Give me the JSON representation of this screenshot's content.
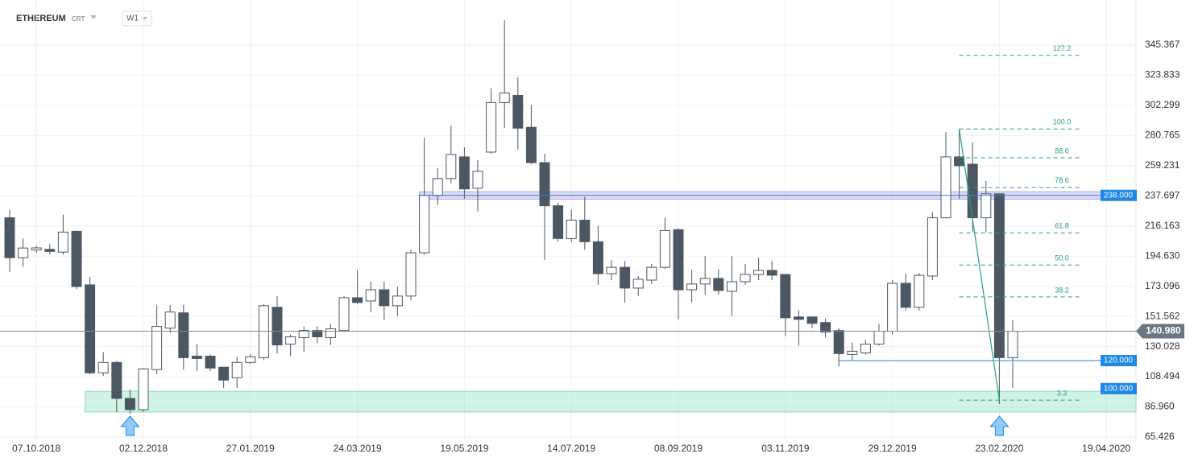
{
  "chart_data": {
    "type": "candlestick",
    "title": "ETHEREUM",
    "subtitle": "CRT",
    "timeframe": "W1",
    "categories": [
      null,
      null,
      "07.10.2018",
      null,
      null,
      null,
      null,
      null,
      null,
      null,
      "02.12.2018",
      null,
      null,
      null,
      null,
      null,
      null,
      null,
      "27.01.2019",
      null,
      null,
      null,
      null,
      null,
      null,
      null,
      "24.03.2019",
      null,
      null,
      null,
      null,
      null,
      null,
      null,
      "19.05.2019",
      null,
      null,
      null,
      null,
      null,
      null,
      null,
      "14.07.2019",
      null,
      null,
      null,
      null,
      null,
      null,
      null,
      "08.09.2019",
      null,
      null,
      null,
      null,
      null,
      null,
      null,
      "03.11.2019",
      null,
      null,
      null,
      null,
      null,
      null,
      null,
      "29.12.2019",
      null,
      null,
      null,
      null,
      null,
      null,
      null,
      "23.02.2020",
      null,
      null,
      null,
      null,
      null,
      null,
      null,
      "19.04.2020"
    ],
    "open": [
      222,
      193.5,
      199,
      199.5,
      197.5,
      212.3,
      174.1,
      111.3,
      118.7,
      93,
      85,
      113.6,
      143.2,
      154.1,
      123.2,
      123.2,
      115.3,
      107.8,
      118.7,
      122.1,
      158.1,
      131.8,
      136.4,
      141.5,
      136.4,
      141.5,
      164.9,
      162.6,
      170.6,
      159.2,
      166.1,
      197,
      238,
      250,
      265.5,
      243.1,
      268.9,
      304.3,
      309.4,
      286.6,
      261.4,
      230.6,
      207.2,
      220.3,
      204.9,
      182.1,
      186.6,
      171.8,
      177.5,
      186.6,
      213.5,
      170.6,
      174.7,
      178.7,
      169.5,
      176.4,
      181.5,
      184.4,
      181.5,
      151.2,
      151.2,
      147.2,
      141.5,
      124.4,
      125.5,
      131.8,
      141,
      175.2,
      158.1,
      180.4,
      222,
      265.5,
      260.3,
      222,
      239.1,
      122.1,
      null,
      null,
      null,
      null,
      null,
      null,
      null
    ],
    "high": [
      227.8,
      207.2,
      202,
      203.2,
      224.3,
      213,
      179.8,
      126.1,
      119.8,
      99.3,
      114.7,
      159.8,
      159.8,
      159.8,
      131.8,
      124.4,
      115.3,
      122.7,
      125,
      160.4,
      166.1,
      138.7,
      144.4,
      144.4,
      146.1,
      166.1,
      184.4,
      176.4,
      176.4,
      172.9,
      199.2,
      279.2,
      257.4,
      287.7,
      272.3,
      263.2,
      314.5,
      363.1,
      322.6,
      302.6,
      267.7,
      232.9,
      227.8,
      236.9,
      216.3,
      191.8,
      191.2,
      180.4,
      189,
      222,
      214.6,
      185,
      194.6,
      185.5,
      194.6,
      189,
      193.5,
      191.2,
      181.5,
      155.8,
      151.2,
      150.1,
      143.2,
      133,
      134.7,
      146.1,
      177.5,
      182.1,
      182.6,
      226,
      283.2,
      284.9,
      275.7,
      248.3,
      239.1,
      148.9,
      null,
      null,
      null,
      null,
      null,
      null,
      null
    ],
    "low": [
      183.2,
      187.2,
      197,
      195.8,
      195.8,
      171,
      110.1,
      109,
      83.3,
      82.1,
      83.3,
      110.1,
      139.8,
      113.6,
      112.4,
      112.4,
      100.4,
      100.4,
      117.6,
      120.4,
      125,
      123.2,
      126.1,
      132.4,
      131.2,
      140.4,
      160.4,
      154.7,
      148.9,
      151.8,
      163.2,
      195.8,
      231.2,
      246.6,
      235.7,
      226.6,
      267.7,
      286,
      270.6,
      260.3,
      191.8,
      204.9,
      204.9,
      199.2,
      174.1,
      177.5,
      161.5,
      166.1,
      174.7,
      185.5,
      149.5,
      161.5,
      167.2,
      167.2,
      151.8,
      174.1,
      177.5,
      177.5,
      137.5,
      130.7,
      143.2,
      136.4,
      115.8,
      120.4,
      124.4,
      130.7,
      138.7,
      155.8,
      155.8,
      177.5,
      221.4,
      235.7,
      211.8,
      211.8,
      89,
      100.4,
      null,
      null,
      null,
      null,
      null,
      null,
      null
    ],
    "close": [
      193.5,
      200.4,
      200.5,
      198,
      211.8,
      172.9,
      111.3,
      118.7,
      93,
      85,
      114.1,
      144.4,
      154.7,
      122.1,
      121.5,
      114.7,
      106.1,
      118.7,
      122.7,
      159.2,
      131.2,
      137,
      141.5,
      137,
      142.7,
      164.9,
      161.5,
      170.6,
      159.2,
      166.1,
      197,
      238,
      250,
      267.2,
      242.6,
      255.2,
      304.3,
      311.1,
      286,
      261.4,
      230.6,
      207.2,
      220.3,
      204.9,
      182.1,
      186.6,
      171.8,
      178.1,
      186.6,
      212.9,
      170.6,
      174.7,
      178.7,
      170.1,
      176.4,
      181.5,
      184.4,
      181,
      150.6,
      149.5,
      146.6,
      140.4,
      125,
      126.7,
      131.8,
      141,
      175.2,
      158.1,
      180.9,
      222,
      265.5,
      259.2,
      222,
      239.1,
      122.1,
      140.98,
      null,
      null,
      null,
      null,
      null,
      null,
      null
    ],
    "color_up": "#ffffff",
    "color_down": "#4b5864",
    "ylim": [
      62.55,
      368.9
    ],
    "yticks": [
      {
        "value": 65.426,
        "label": "65.426"
      },
      {
        "value": 86.96,
        "label": "86.960"
      },
      108.494,
      130.028,
      151.562,
      173.096,
      {
        "value": 194.63,
        "label": "194.630"
      },
      216.163,
      237.697,
      259.231,
      280.765,
      302.299,
      323.833,
      345.367
    ],
    "grid": true,
    "last_price": {
      "value": 140.98,
      "label": "140.980"
    },
    "levels": [
      {
        "value": 238,
        "label": "238.000"
      },
      {
        "value": 120,
        "label": "120.000"
      },
      {
        "value": 100,
        "label": "100.000"
      }
    ],
    "resistance_zone": [
      235.3,
      240.6
    ],
    "support_zone": [
      83.3,
      98.1
    ],
    "fib_levels": [
      {
        "value": 338,
        "label": "127.2"
      },
      {
        "value": 285.4,
        "label": "100.0"
      },
      {
        "value": 264.9,
        "label": "88.6"
      },
      {
        "value": 243.7,
        "label": "78.6"
      },
      {
        "value": 211.2,
        "label": "61.8"
      },
      {
        "value": 188.3,
        "label": "50.0"
      },
      {
        "value": 165.5,
        "label": "38.2"
      },
      {
        "value": 91.8,
        "label": "3.3"
      }
    ]
  }
}
